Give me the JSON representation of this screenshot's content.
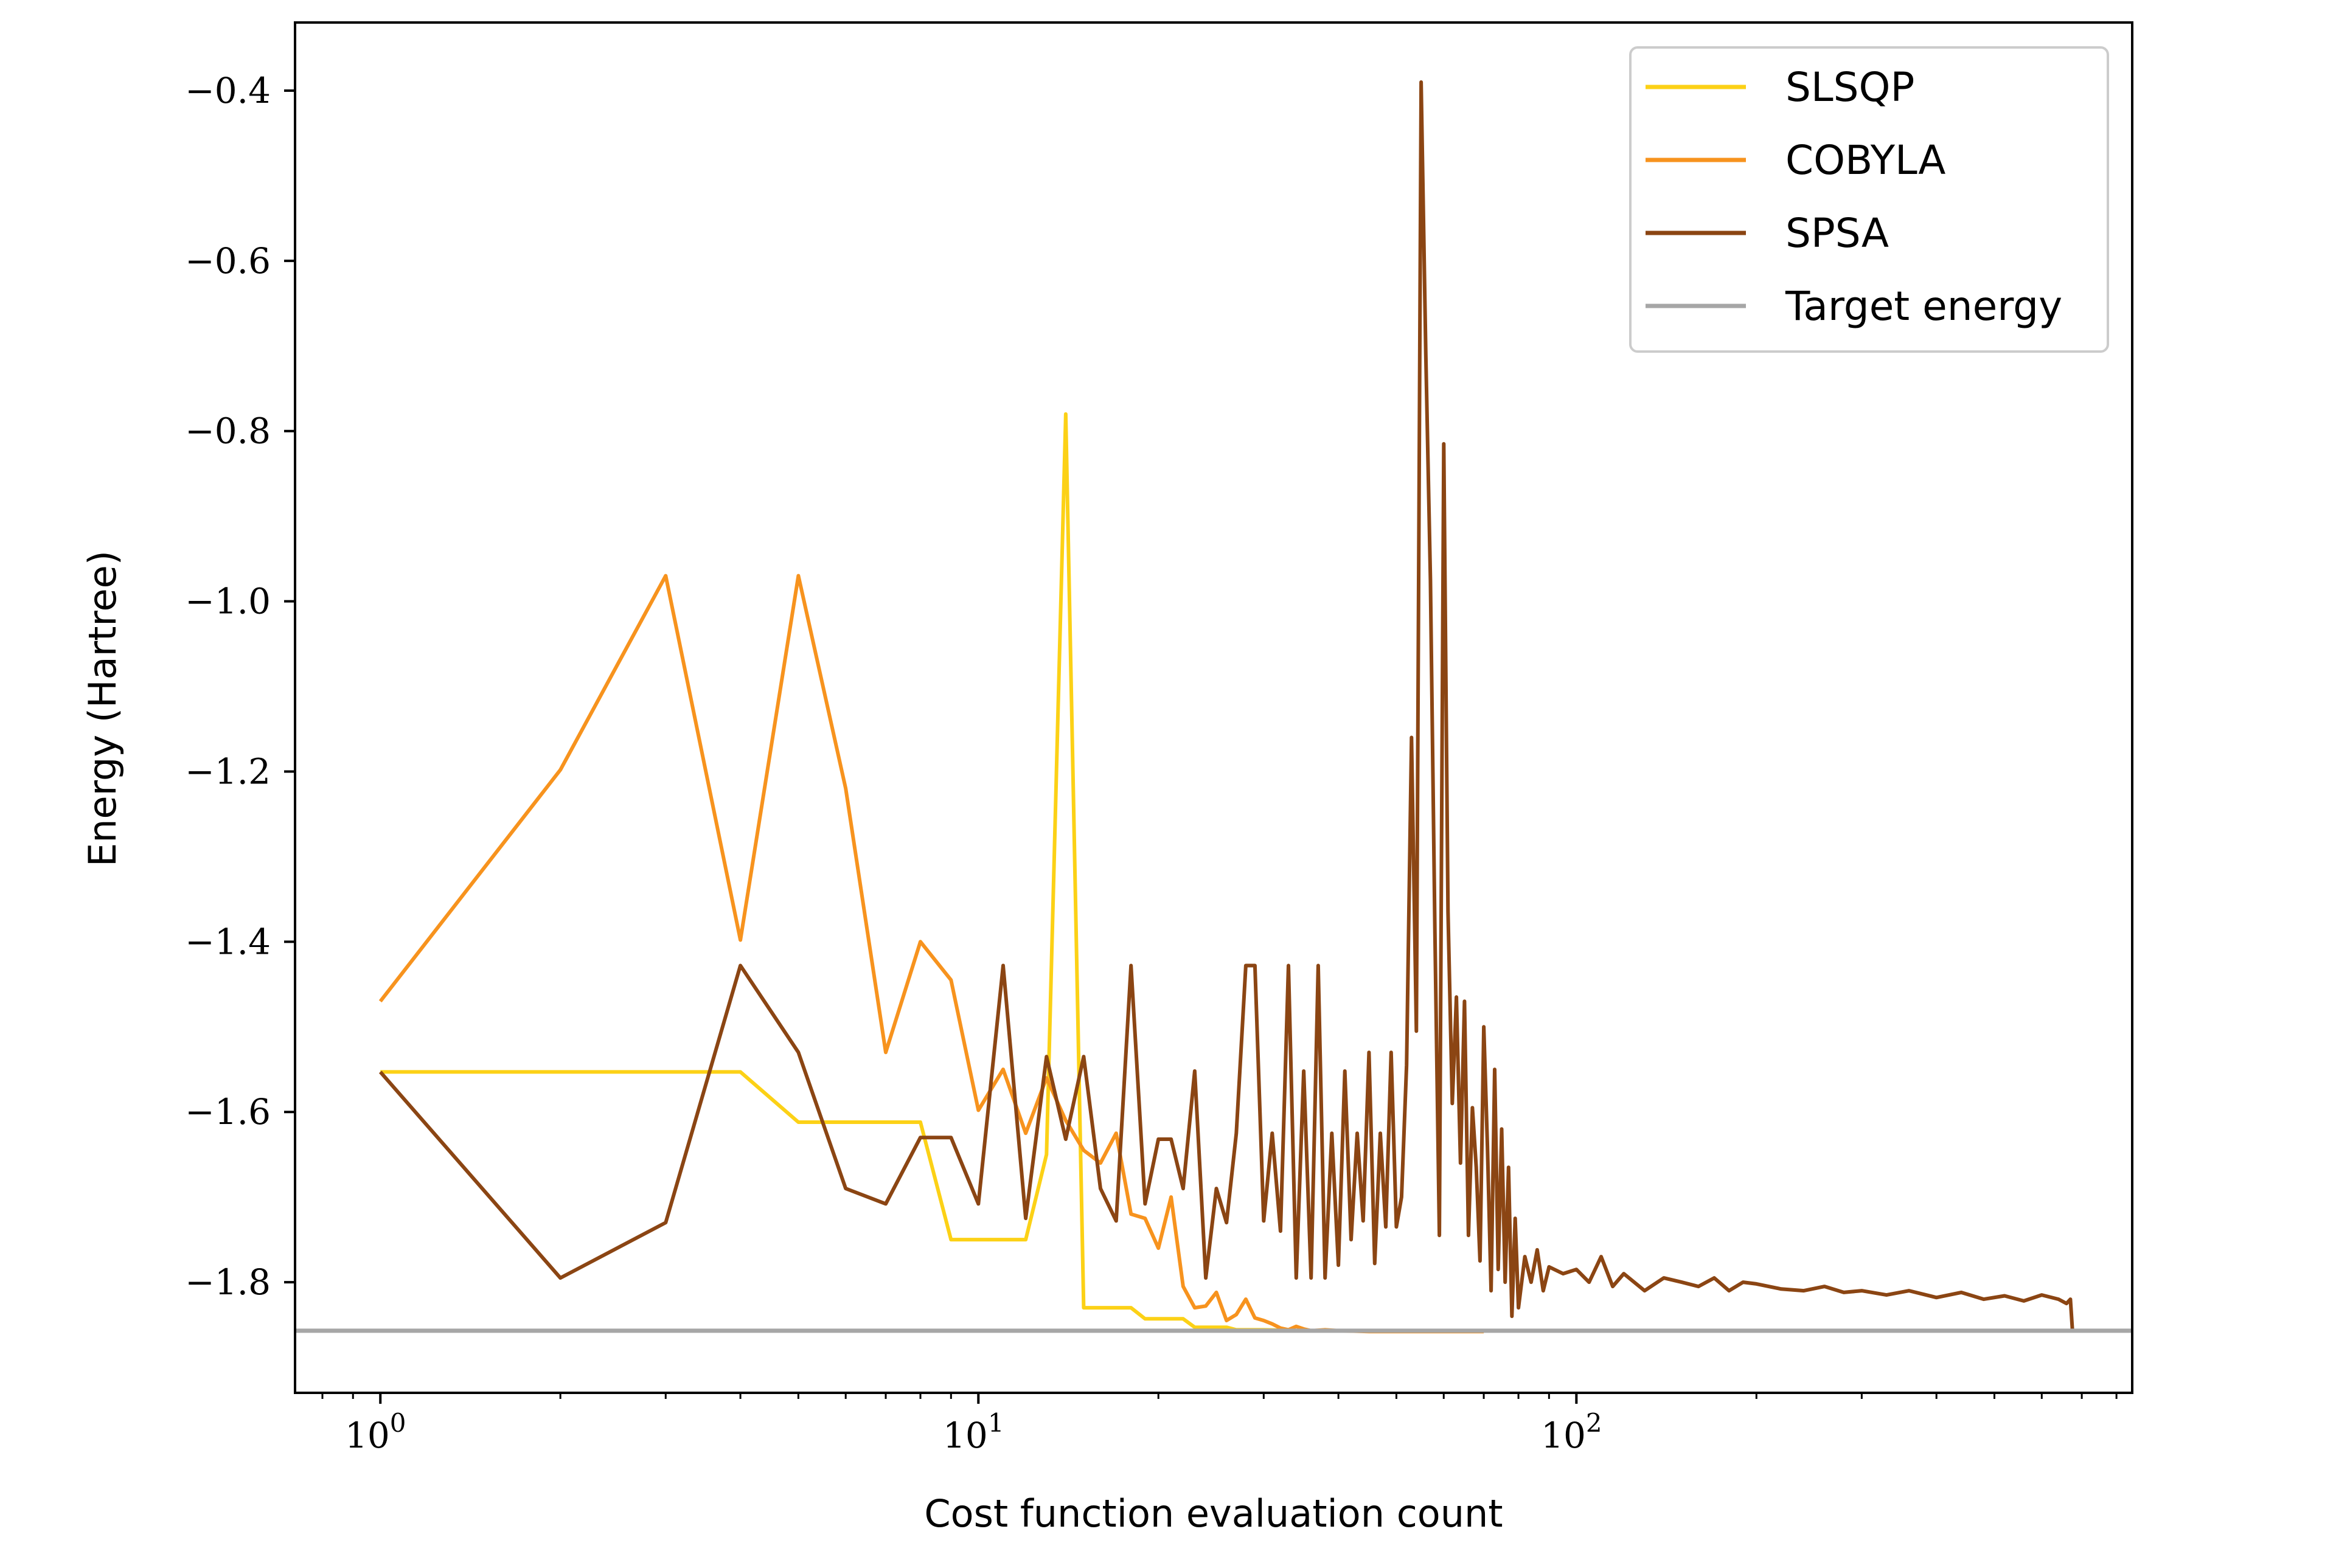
{
  "chart_data": {
    "type": "line",
    "title": "",
    "xlabel": "Cost function evaluation count",
    "ylabel": "Energy (Hartree)",
    "xscale": "log",
    "xlim": [
      0.72,
      850
    ],
    "ylim": [
      -1.93,
      -0.32
    ],
    "xticks_major": [
      {
        "value": 1,
        "base": "10",
        "exp": "0"
      },
      {
        "value": 10,
        "base": "10",
        "exp": "1"
      },
      {
        "value": 100,
        "base": "10",
        "exp": "2"
      }
    ],
    "yticks": [
      {
        "value": -0.4,
        "label": "−0.4"
      },
      {
        "value": -0.6,
        "label": "−0.6"
      },
      {
        "value": -0.8,
        "label": "−0.8"
      },
      {
        "value": -1.0,
        "label": "−1.0"
      },
      {
        "value": -1.2,
        "label": "−1.2"
      },
      {
        "value": -1.4,
        "label": "−1.4"
      },
      {
        "value": -1.6,
        "label": "−1.6"
      },
      {
        "value": -1.8,
        "label": "−1.8"
      }
    ],
    "grid": false,
    "legend_position": "top-right",
    "series": [
      {
        "name": "SLSQP",
        "color": "#fcd116",
        "x": [
          1,
          2,
          3,
          4,
          5,
          6,
          7,
          8,
          9,
          10,
          11,
          12,
          13,
          14,
          15,
          16,
          17,
          18,
          19,
          20,
          21,
          22,
          23,
          24,
          25,
          26,
          27,
          28,
          29,
          30,
          35,
          40,
          50,
          60,
          70
        ],
        "y": [
          -1.553,
          -1.553,
          -1.553,
          -1.553,
          -1.612,
          -1.612,
          -1.612,
          -1.612,
          -1.75,
          -1.75,
          -1.75,
          -1.75,
          -1.65,
          -0.78,
          -1.83,
          -1.83,
          -1.83,
          -1.83,
          -1.843,
          -1.843,
          -1.843,
          -1.843,
          -1.853,
          -1.853,
          -1.853,
          -1.853,
          -1.856,
          -1.856,
          -1.856,
          -1.856,
          -1.857,
          -1.857,
          -1.857,
          -1.857,
          -1.857
        ]
      },
      {
        "name": "COBYLA",
        "color": "#f7931e",
        "x": [
          1,
          2,
          3,
          4,
          5,
          6,
          7,
          8,
          9,
          10,
          11,
          12,
          13,
          14,
          15,
          16,
          17,
          18,
          19,
          20,
          21,
          22,
          23,
          24,
          25,
          26,
          27,
          28,
          29,
          30,
          31,
          32,
          33,
          34,
          35,
          36,
          38,
          40,
          45,
          50,
          60,
          70
        ],
        "y": [
          -1.47,
          -1.198,
          -0.97,
          -1.398,
          -0.97,
          -1.22,
          -1.53,
          -1.4,
          -1.445,
          -1.598,
          -1.55,
          -1.625,
          -1.56,
          -1.61,
          -1.645,
          -1.66,
          -1.625,
          -1.72,
          -1.725,
          -1.76,
          -1.7,
          -1.805,
          -1.83,
          -1.828,
          -1.812,
          -1.845,
          -1.838,
          -1.82,
          -1.842,
          -1.845,
          -1.849,
          -1.854,
          -1.856,
          -1.852,
          -1.855,
          -1.857,
          -1.856,
          -1.857,
          -1.858,
          -1.858,
          -1.858,
          -1.858
        ]
      },
      {
        "name": "SPSA",
        "color": "#8b4513",
        "x": [
          1,
          2,
          3,
          4,
          5,
          6,
          7,
          8,
          9,
          10,
          11,
          12,
          13,
          14,
          15,
          16,
          17,
          18,
          19,
          20,
          21,
          22,
          23,
          24,
          25,
          26,
          27,
          28,
          29,
          30,
          31,
          32,
          33,
          34,
          35,
          36,
          37,
          38,
          39,
          40,
          41,
          42,
          43,
          44,
          45,
          46,
          47,
          48,
          49,
          50,
          51,
          52,
          53,
          54,
          55,
          56,
          57,
          58,
          59,
          60,
          61,
          62,
          63,
          64,
          65,
          66,
          67,
          68,
          69,
          70,
          71,
          72,
          73,
          74,
          75,
          76,
          77,
          78,
          79,
          80,
          82,
          84,
          86,
          88,
          90,
          95,
          100,
          105,
          110,
          115,
          120,
          130,
          140,
          150,
          160,
          170,
          180,
          190,
          200,
          220,
          240,
          260,
          280,
          300,
          330,
          360,
          400,
          440,
          480,
          520,
          560,
          600,
          640,
          660,
          670,
          675
        ],
        "y": [
          -1.553,
          -1.795,
          -1.73,
          -1.428,
          -1.53,
          -1.69,
          -1.708,
          -1.63,
          -1.63,
          -1.708,
          -1.428,
          -1.725,
          -1.535,
          -1.632,
          -1.535,
          -1.69,
          -1.728,
          -1.428,
          -1.708,
          -1.632,
          -1.632,
          -1.69,
          -1.552,
          -1.795,
          -1.69,
          -1.73,
          -1.625,
          -1.428,
          -1.428,
          -1.728,
          -1.625,
          -1.74,
          -1.428,
          -1.795,
          -1.552,
          -1.795,
          -1.428,
          -1.795,
          -1.625,
          -1.78,
          -1.552,
          -1.75,
          -1.625,
          -1.728,
          -1.53,
          -1.778,
          -1.625,
          -1.735,
          -1.53,
          -1.735,
          -1.7,
          -1.545,
          -1.16,
          -1.505,
          -0.39,
          -0.71,
          -0.975,
          -1.39,
          -1.745,
          -0.815,
          -1.365,
          -1.59,
          -1.465,
          -1.66,
          -1.47,
          -1.745,
          -1.595,
          -1.665,
          -1.775,
          -1.5,
          -1.64,
          -1.81,
          -1.55,
          -1.785,
          -1.62,
          -1.8,
          -1.665,
          -1.84,
          -1.725,
          -1.83,
          -1.77,
          -1.8,
          -1.762,
          -1.81,
          -1.782,
          -1.79,
          -1.785,
          -1.8,
          -1.77,
          -1.805,
          -1.79,
          -1.81,
          -1.795,
          -1.8,
          -1.805,
          -1.795,
          -1.81,
          -1.8,
          -1.802,
          -1.808,
          -1.81,
          -1.805,
          -1.812,
          -1.81,
          -1.815,
          -1.81,
          -1.818,
          -1.812,
          -1.82,
          -1.816,
          -1.822,
          -1.815,
          -1.82,
          -1.825,
          -1.82,
          -1.855
        ]
      },
      {
        "name": "Target energy",
        "color": "#a6a6a6",
        "constant_y": -1.857
      }
    ]
  }
}
